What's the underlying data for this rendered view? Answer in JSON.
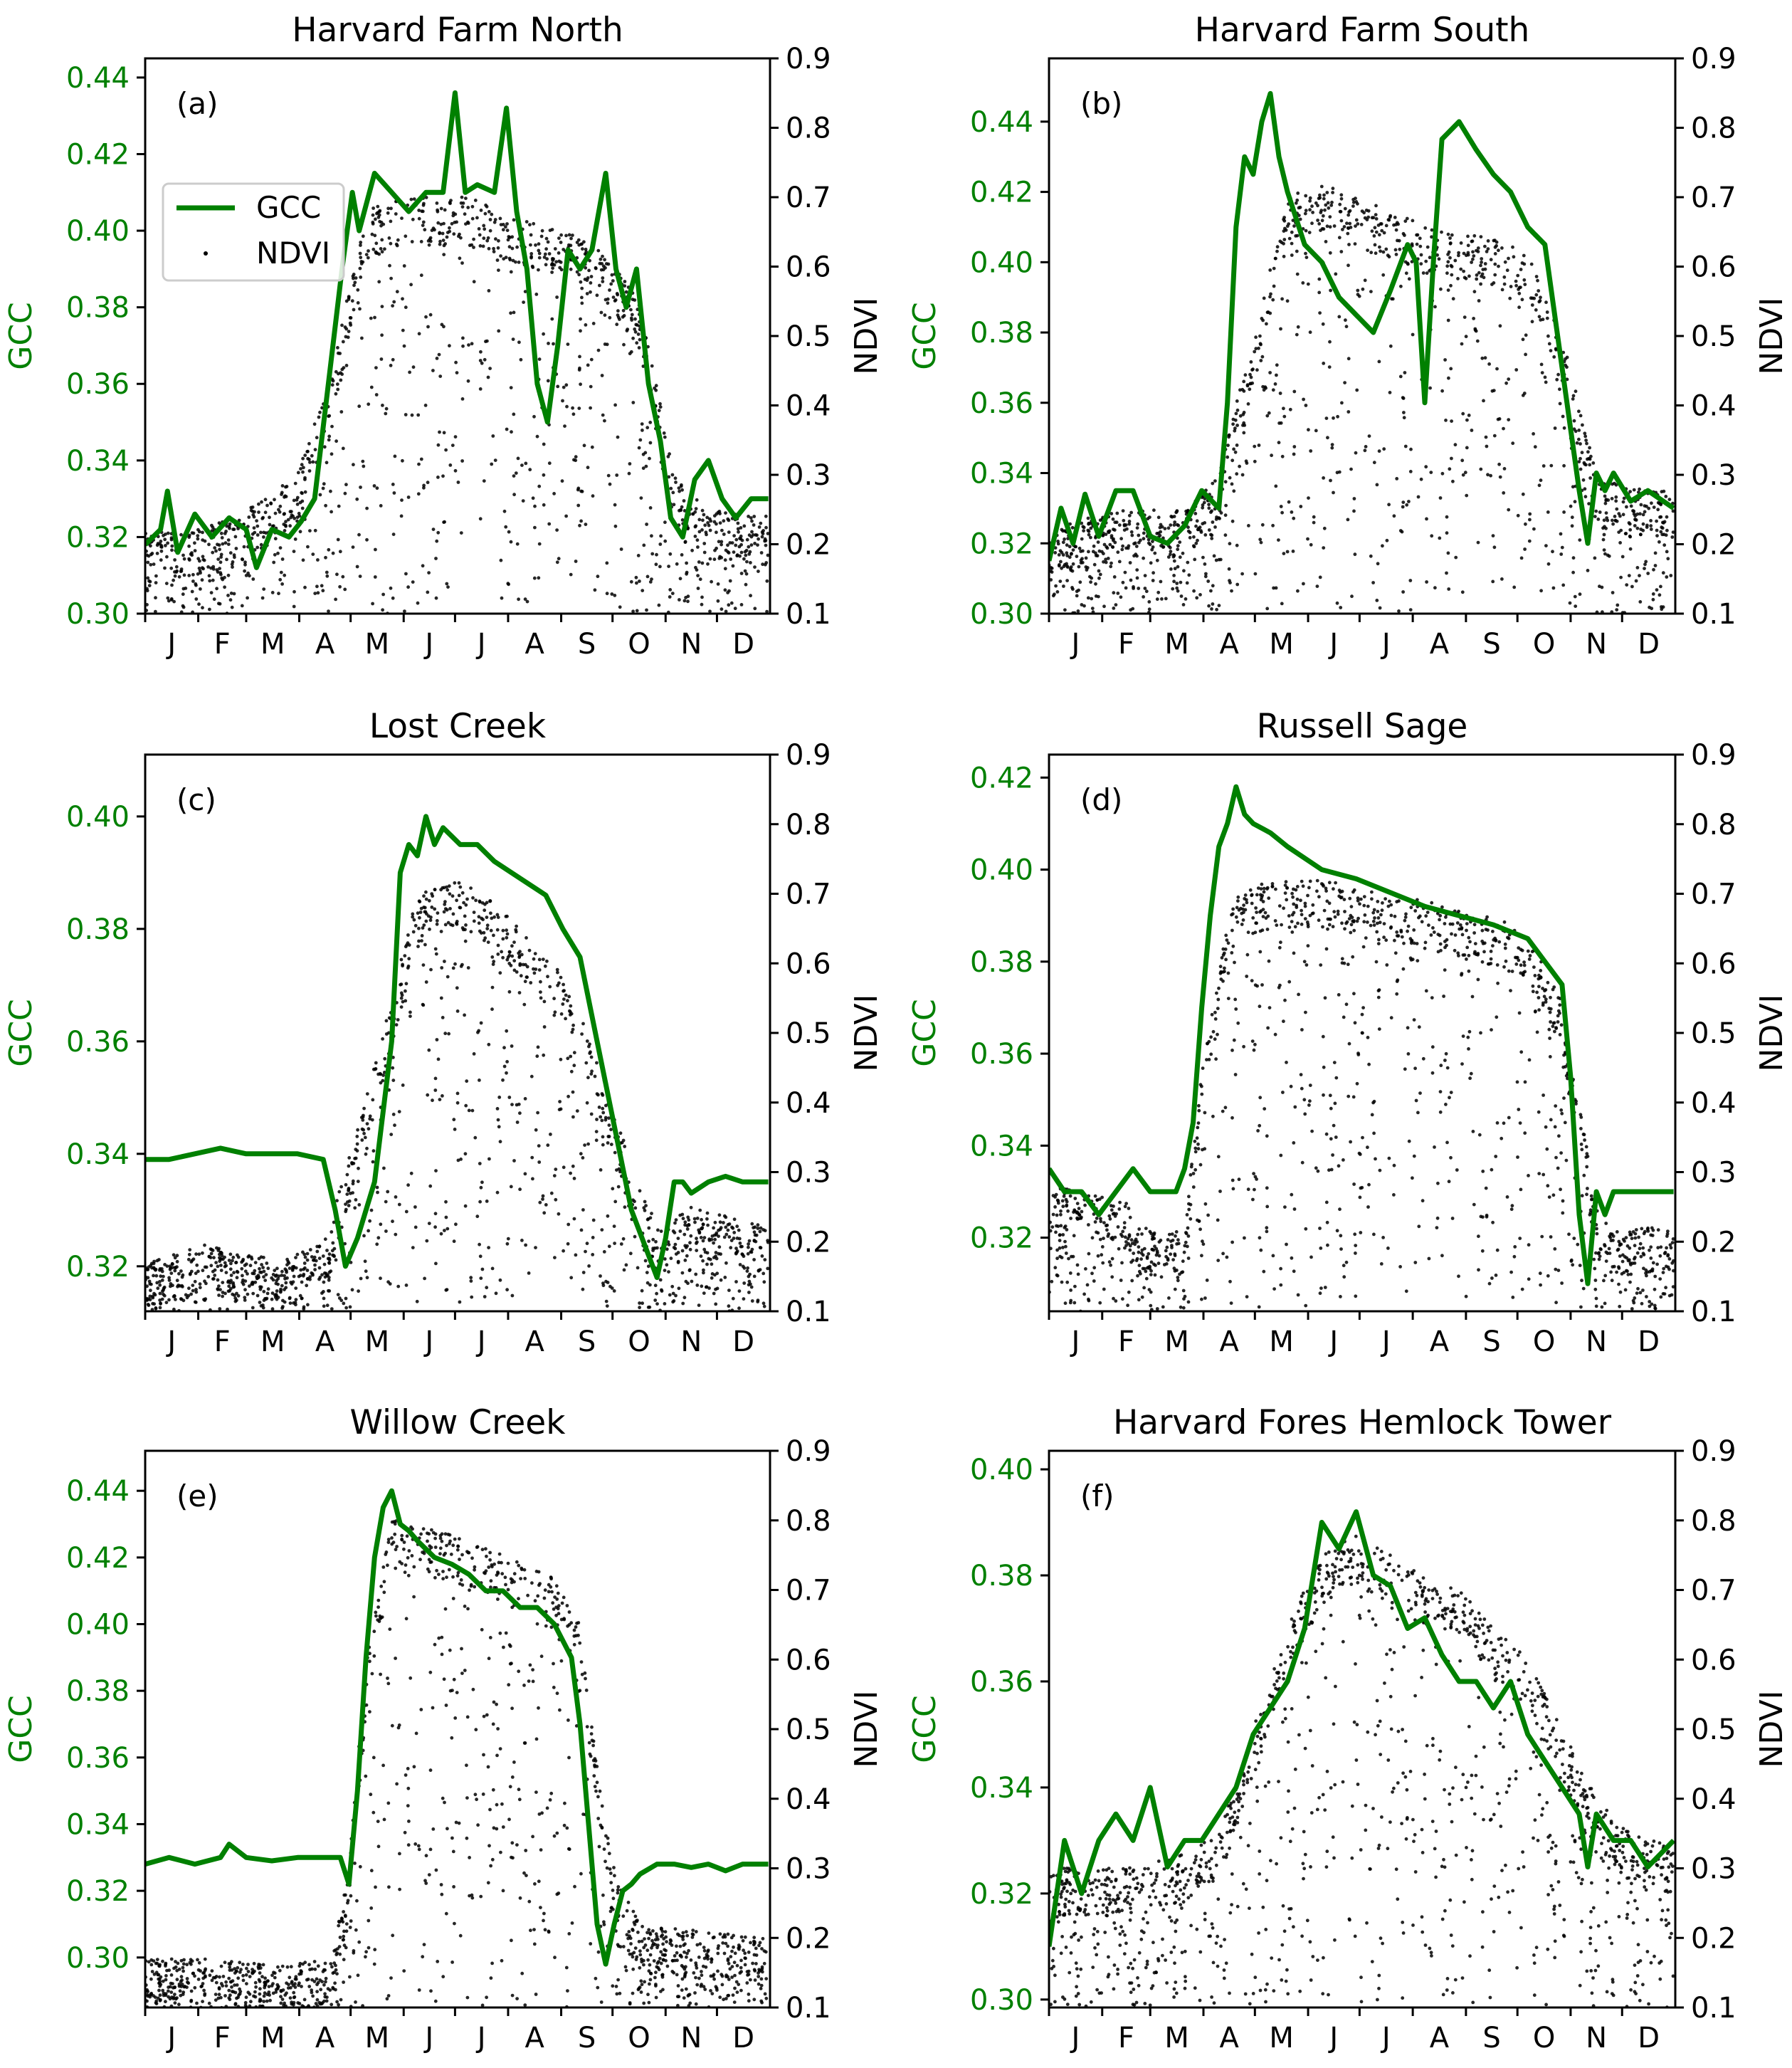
{
  "figure": {
    "legend": {
      "gcc_label": "GCC",
      "ndvi_label": "NDVI"
    },
    "colors": {
      "gcc": "#008000",
      "ndvi": "#000000",
      "frame": "#000000"
    }
  },
  "chart_data": [
    {
      "type": "line+scatter",
      "panel": "(a)",
      "title": "Harvard Farm North",
      "ylabel_left": "GCC",
      "ylabel_right": "NDVI",
      "months": [
        "J",
        "F",
        "M",
        "A",
        "M",
        "J",
        "J",
        "A",
        "S",
        "O",
        "N",
        "D"
      ],
      "gcc_ylim": [
        0.3,
        0.445
      ],
      "gcc_ticks": [
        "0.30",
        "0.32",
        "0.34",
        "0.36",
        "0.38",
        "0.40",
        "0.42",
        "0.44"
      ],
      "ndvi_ylim": [
        0.1,
        0.9
      ],
      "ndvi_ticks": [
        "0.1",
        "0.2",
        "0.3",
        "0.4",
        "0.5",
        "0.6",
        "0.7",
        "0.8",
        "0.9"
      ],
      "legend_position": "upper-left",
      "series": [
        {
          "name": "GCC",
          "x_doy": [
            1,
            10,
            14,
            20,
            30,
            40,
            50,
            60,
            66,
            75,
            85,
            92,
            100,
            108,
            116,
            122,
            126,
            135,
            145,
            155,
            165,
            175,
            182,
            188,
            195,
            205,
            212,
            218,
            224,
            230,
            236,
            242,
            248,
            255,
            262,
            270,
            276,
            282,
            288,
            295,
            302,
            308,
            315,
            322,
            330,
            338,
            346,
            355,
            365
          ],
          "y": [
            0.318,
            0.322,
            0.332,
            0.316,
            0.326,
            0.32,
            0.325,
            0.322,
            0.312,
            0.322,
            0.32,
            0.324,
            0.33,
            0.36,
            0.39,
            0.41,
            0.4,
            0.415,
            0.41,
            0.405,
            0.41,
            0.41,
            0.436,
            0.41,
            0.412,
            0.41,
            0.432,
            0.405,
            0.39,
            0.36,
            0.35,
            0.37,
            0.395,
            0.39,
            0.395,
            0.415,
            0.39,
            0.38,
            0.39,
            0.36,
            0.345,
            0.325,
            0.32,
            0.335,
            0.34,
            0.33,
            0.325,
            0.33,
            0.33
          ]
        },
        {
          "name": "NDVI",
          "x_doy": [
            1,
            30,
            60,
            90,
            110,
            130,
            150,
            170,
            190,
            210,
            230,
            250,
            270,
            290,
            310,
            330,
            365
          ],
          "y": [
            0.22,
            0.22,
            0.25,
            0.3,
            0.45,
            0.68,
            0.7,
            0.7,
            0.7,
            0.68,
            0.66,
            0.65,
            0.62,
            0.55,
            0.3,
            0.25,
            0.24
          ]
        }
      ]
    },
    {
      "type": "line+scatter",
      "panel": "(b)",
      "title": "Harvard Farm South",
      "ylabel_left": "GCC",
      "ylabel_right": "NDVI",
      "months": [
        "J",
        "F",
        "M",
        "A",
        "M",
        "J",
        "J",
        "A",
        "S",
        "O",
        "N",
        "D"
      ],
      "gcc_ylim": [
        0.3,
        0.458
      ],
      "gcc_ticks": [
        "0.30",
        "0.32",
        "0.34",
        "0.36",
        "0.38",
        "0.40",
        "0.42",
        "0.44"
      ],
      "ndvi_ylim": [
        0.1,
        0.9
      ],
      "ndvi_ticks": [
        "0.1",
        "0.2",
        "0.3",
        "0.4",
        "0.5",
        "0.6",
        "0.7",
        "0.8",
        "0.9"
      ],
      "series": [
        {
          "name": "GCC",
          "x_doy": [
            1,
            8,
            15,
            22,
            30,
            40,
            50,
            60,
            70,
            80,
            90,
            100,
            105,
            110,
            115,
            120,
            125,
            130,
            135,
            140,
            150,
            160,
            170,
            180,
            190,
            200,
            210,
            215,
            220,
            225,
            230,
            240,
            250,
            260,
            270,
            280,
            290,
            300,
            310,
            315,
            320,
            325,
            330,
            340,
            350,
            365
          ],
          "y": [
            0.315,
            0.33,
            0.32,
            0.334,
            0.322,
            0.335,
            0.335,
            0.322,
            0.32,
            0.325,
            0.335,
            0.33,
            0.36,
            0.41,
            0.43,
            0.425,
            0.44,
            0.448,
            0.43,
            0.42,
            0.405,
            0.4,
            0.39,
            0.385,
            0.38,
            0.392,
            0.405,
            0.4,
            0.36,
            0.4,
            0.435,
            0.44,
            0.432,
            0.425,
            0.42,
            0.41,
            0.405,
            0.37,
            0.335,
            0.32,
            0.34,
            0.335,
            0.34,
            0.332,
            0.335,
            0.33
          ]
        },
        {
          "name": "NDVI",
          "x_doy": [
            1,
            40,
            80,
            100,
            120,
            140,
            160,
            180,
            200,
            220,
            240,
            260,
            280,
            300,
            320,
            340,
            365
          ],
          "y": [
            0.22,
            0.25,
            0.25,
            0.3,
            0.5,
            0.7,
            0.72,
            0.7,
            0.68,
            0.66,
            0.65,
            0.64,
            0.62,
            0.5,
            0.3,
            0.28,
            0.28
          ]
        }
      ]
    },
    {
      "type": "line+scatter",
      "panel": "(c)",
      "title": "Lost Creek",
      "ylabel_left": "GCC",
      "ylabel_right": "NDVI",
      "months": [
        "J",
        "F",
        "M",
        "A",
        "M",
        "J",
        "J",
        "A",
        "S",
        "O",
        "N",
        "D"
      ],
      "gcc_ylim": [
        0.312,
        0.411
      ],
      "gcc_ticks": [
        "0.32",
        "0.34",
        "0.36",
        "0.38",
        "0.40"
      ],
      "ndvi_ylim": [
        0.1,
        0.9
      ],
      "ndvi_ticks": [
        "0.1",
        "0.2",
        "0.3",
        "0.4",
        "0.5",
        "0.6",
        "0.7",
        "0.8",
        "0.9"
      ],
      "series": [
        {
          "name": "GCC",
          "x_doy": [
            1,
            15,
            30,
            45,
            60,
            75,
            90,
            105,
            112,
            118,
            125,
            135,
            145,
            150,
            155,
            160,
            165,
            170,
            175,
            185,
            195,
            205,
            215,
            225,
            235,
            245,
            255,
            265,
            275,
            285,
            295,
            300,
            305,
            310,
            315,
            320,
            330,
            340,
            350,
            365
          ],
          "y": [
            0.339,
            0.339,
            0.34,
            0.341,
            0.34,
            0.34,
            0.34,
            0.339,
            0.33,
            0.32,
            0.325,
            0.335,
            0.36,
            0.39,
            0.395,
            0.393,
            0.4,
            0.395,
            0.398,
            0.395,
            0.395,
            0.392,
            0.39,
            0.388,
            0.386,
            0.38,
            0.375,
            0.36,
            0.345,
            0.33,
            0.322,
            0.318,
            0.325,
            0.335,
            0.335,
            0.333,
            0.335,
            0.336,
            0.335,
            0.335
          ]
        },
        {
          "name": "NDVI",
          "x_doy": [
            1,
            40,
            80,
            105,
            120,
            140,
            160,
            180,
            200,
            220,
            240,
            260,
            280,
            300,
            320,
            365
          ],
          "y": [
            0.17,
            0.2,
            0.17,
            0.2,
            0.32,
            0.5,
            0.7,
            0.72,
            0.7,
            0.65,
            0.6,
            0.5,
            0.35,
            0.22,
            0.25,
            0.22
          ]
        }
      ]
    },
    {
      "type": "line+scatter",
      "panel": "(d)",
      "title": "Russell Sage",
      "ylabel_left": "GCC",
      "ylabel_right": "NDVI",
      "months": [
        "J",
        "F",
        "M",
        "A",
        "M",
        "J",
        "J",
        "A",
        "S",
        "O",
        "N",
        "D"
      ],
      "gcc_ylim": [
        0.304,
        0.425
      ],
      "gcc_ticks": [
        "0.32",
        "0.34",
        "0.36",
        "0.38",
        "0.40",
        "0.42"
      ],
      "ndvi_ylim": [
        0.1,
        0.9
      ],
      "ndvi_ticks": [
        "0.1",
        "0.2",
        "0.3",
        "0.4",
        "0.5",
        "0.6",
        "0.7",
        "0.8",
        "0.9"
      ],
      "series": [
        {
          "name": "GCC",
          "x_doy": [
            1,
            10,
            20,
            30,
            40,
            50,
            60,
            70,
            75,
            80,
            85,
            90,
            95,
            100,
            105,
            110,
            115,
            120,
            130,
            140,
            160,
            180,
            200,
            220,
            240,
            260,
            280,
            290,
            300,
            305,
            310,
            315,
            320,
            325,
            330,
            340,
            350,
            365
          ],
          "y": [
            0.335,
            0.33,
            0.33,
            0.325,
            0.33,
            0.335,
            0.33,
            0.33,
            0.33,
            0.335,
            0.345,
            0.37,
            0.39,
            0.405,
            0.41,
            0.418,
            0.412,
            0.41,
            0.408,
            0.405,
            0.4,
            0.398,
            0.395,
            0.392,
            0.39,
            0.388,
            0.385,
            0.38,
            0.375,
            0.355,
            0.325,
            0.31,
            0.33,
            0.325,
            0.33,
            0.33,
            0.33,
            0.33
          ]
        },
        {
          "name": "NDVI",
          "x_doy": [
            1,
            40,
            60,
            80,
            90,
            100,
            110,
            130,
            160,
            200,
            240,
            280,
            300,
            310,
            320,
            330,
            365
          ],
          "y": [
            0.28,
            0.27,
            0.22,
            0.22,
            0.45,
            0.6,
            0.7,
            0.72,
            0.72,
            0.7,
            0.68,
            0.65,
            0.55,
            0.4,
            0.25,
            0.22,
            0.22
          ]
        }
      ]
    },
    {
      "type": "line+scatter",
      "panel": "(e)",
      "title": "Willow Creek",
      "ylabel_left": "GCC",
      "ylabel_right": "NDVI",
      "months": [
        "J",
        "F",
        "M",
        "A",
        "M",
        "J",
        "J",
        "A",
        "S",
        "O",
        "N",
        "D"
      ],
      "gcc_ylim": [
        0.285,
        0.452
      ],
      "gcc_ticks": [
        "0.30",
        "0.32",
        "0.34",
        "0.36",
        "0.38",
        "0.40",
        "0.42",
        "0.44"
      ],
      "ndvi_ylim": [
        0.1,
        0.9
      ],
      "ndvi_ticks": [
        "0.1",
        "0.2",
        "0.3",
        "0.4",
        "0.5",
        "0.6",
        "0.7",
        "0.8",
        "0.9"
      ],
      "series": [
        {
          "name": "GCC",
          "x_doy": [
            1,
            15,
            30,
            45,
            50,
            60,
            75,
            90,
            105,
            115,
            120,
            125,
            130,
            135,
            140,
            145,
            150,
            155,
            160,
            170,
            180,
            190,
            200,
            210,
            220,
            230,
            240,
            250,
            255,
            260,
            265,
            270,
            275,
            280,
            285,
            290,
            300,
            310,
            320,
            330,
            340,
            350,
            365
          ],
          "y": [
            0.328,
            0.33,
            0.328,
            0.33,
            0.334,
            0.33,
            0.329,
            0.33,
            0.33,
            0.33,
            0.322,
            0.35,
            0.39,
            0.42,
            0.435,
            0.44,
            0.43,
            0.428,
            0.425,
            0.42,
            0.418,
            0.415,
            0.41,
            0.41,
            0.405,
            0.405,
            0.4,
            0.39,
            0.37,
            0.34,
            0.31,
            0.298,
            0.31,
            0.32,
            0.322,
            0.325,
            0.328,
            0.328,
            0.327,
            0.328,
            0.326,
            0.328,
            0.328
          ]
        },
        {
          "name": "NDVI",
          "x_doy": [
            1,
            40,
            80,
            110,
            120,
            130,
            145,
            160,
            180,
            200,
            220,
            240,
            255,
            265,
            275,
            290,
            365
          ],
          "y": [
            0.17,
            0.17,
            0.16,
            0.17,
            0.3,
            0.6,
            0.8,
            0.8,
            0.78,
            0.76,
            0.74,
            0.72,
            0.65,
            0.45,
            0.3,
            0.22,
            0.2
          ]
        }
      ]
    },
    {
      "type": "line+scatter",
      "panel": "(f)",
      "title": "Harvard Fores Hemlock Tower",
      "ylabel_left": "GCC",
      "ylabel_right": "NDVI",
      "months": [
        "J",
        "F",
        "M",
        "A",
        "M",
        "J",
        "J",
        "A",
        "S",
        "O",
        "N",
        "D"
      ],
      "gcc_ylim": [
        0.2985,
        0.4035
      ],
      "gcc_ticks": [
        "0.30",
        "0.32",
        "0.34",
        "0.36",
        "0.38",
        "0.40"
      ],
      "ndvi_ylim": [
        0.1,
        0.9
      ],
      "ndvi_ticks": [
        "0.1",
        "0.2",
        "0.3",
        "0.4",
        "0.5",
        "0.6",
        "0.7",
        "0.8",
        "0.9"
      ],
      "series": [
        {
          "name": "GCC",
          "x_doy": [
            1,
            10,
            20,
            30,
            40,
            50,
            60,
            70,
            80,
            90,
            100,
            110,
            120,
            130,
            140,
            150,
            155,
            160,
            170,
            180,
            190,
            200,
            210,
            220,
            230,
            240,
            250,
            260,
            270,
            280,
            290,
            300,
            310,
            315,
            320,
            330,
            340,
            350,
            365
          ],
          "y": [
            0.31,
            0.33,
            0.32,
            0.33,
            0.335,
            0.33,
            0.34,
            0.325,
            0.33,
            0.33,
            0.335,
            0.34,
            0.35,
            0.355,
            0.36,
            0.37,
            0.38,
            0.39,
            0.385,
            0.392,
            0.38,
            0.378,
            0.37,
            0.372,
            0.365,
            0.36,
            0.36,
            0.355,
            0.36,
            0.35,
            0.345,
            0.34,
            0.335,
            0.325,
            0.335,
            0.33,
            0.33,
            0.325,
            0.33
          ]
        },
        {
          "name": "NDVI",
          "x_doy": [
            1,
            40,
            80,
            100,
            120,
            140,
            160,
            180,
            200,
            220,
            240,
            260,
            280,
            300,
            320,
            340,
            365
          ],
          "y": [
            0.3,
            0.3,
            0.32,
            0.35,
            0.5,
            0.65,
            0.75,
            0.78,
            0.75,
            0.72,
            0.7,
            0.65,
            0.6,
            0.5,
            0.4,
            0.35,
            0.33
          ]
        }
      ]
    }
  ]
}
